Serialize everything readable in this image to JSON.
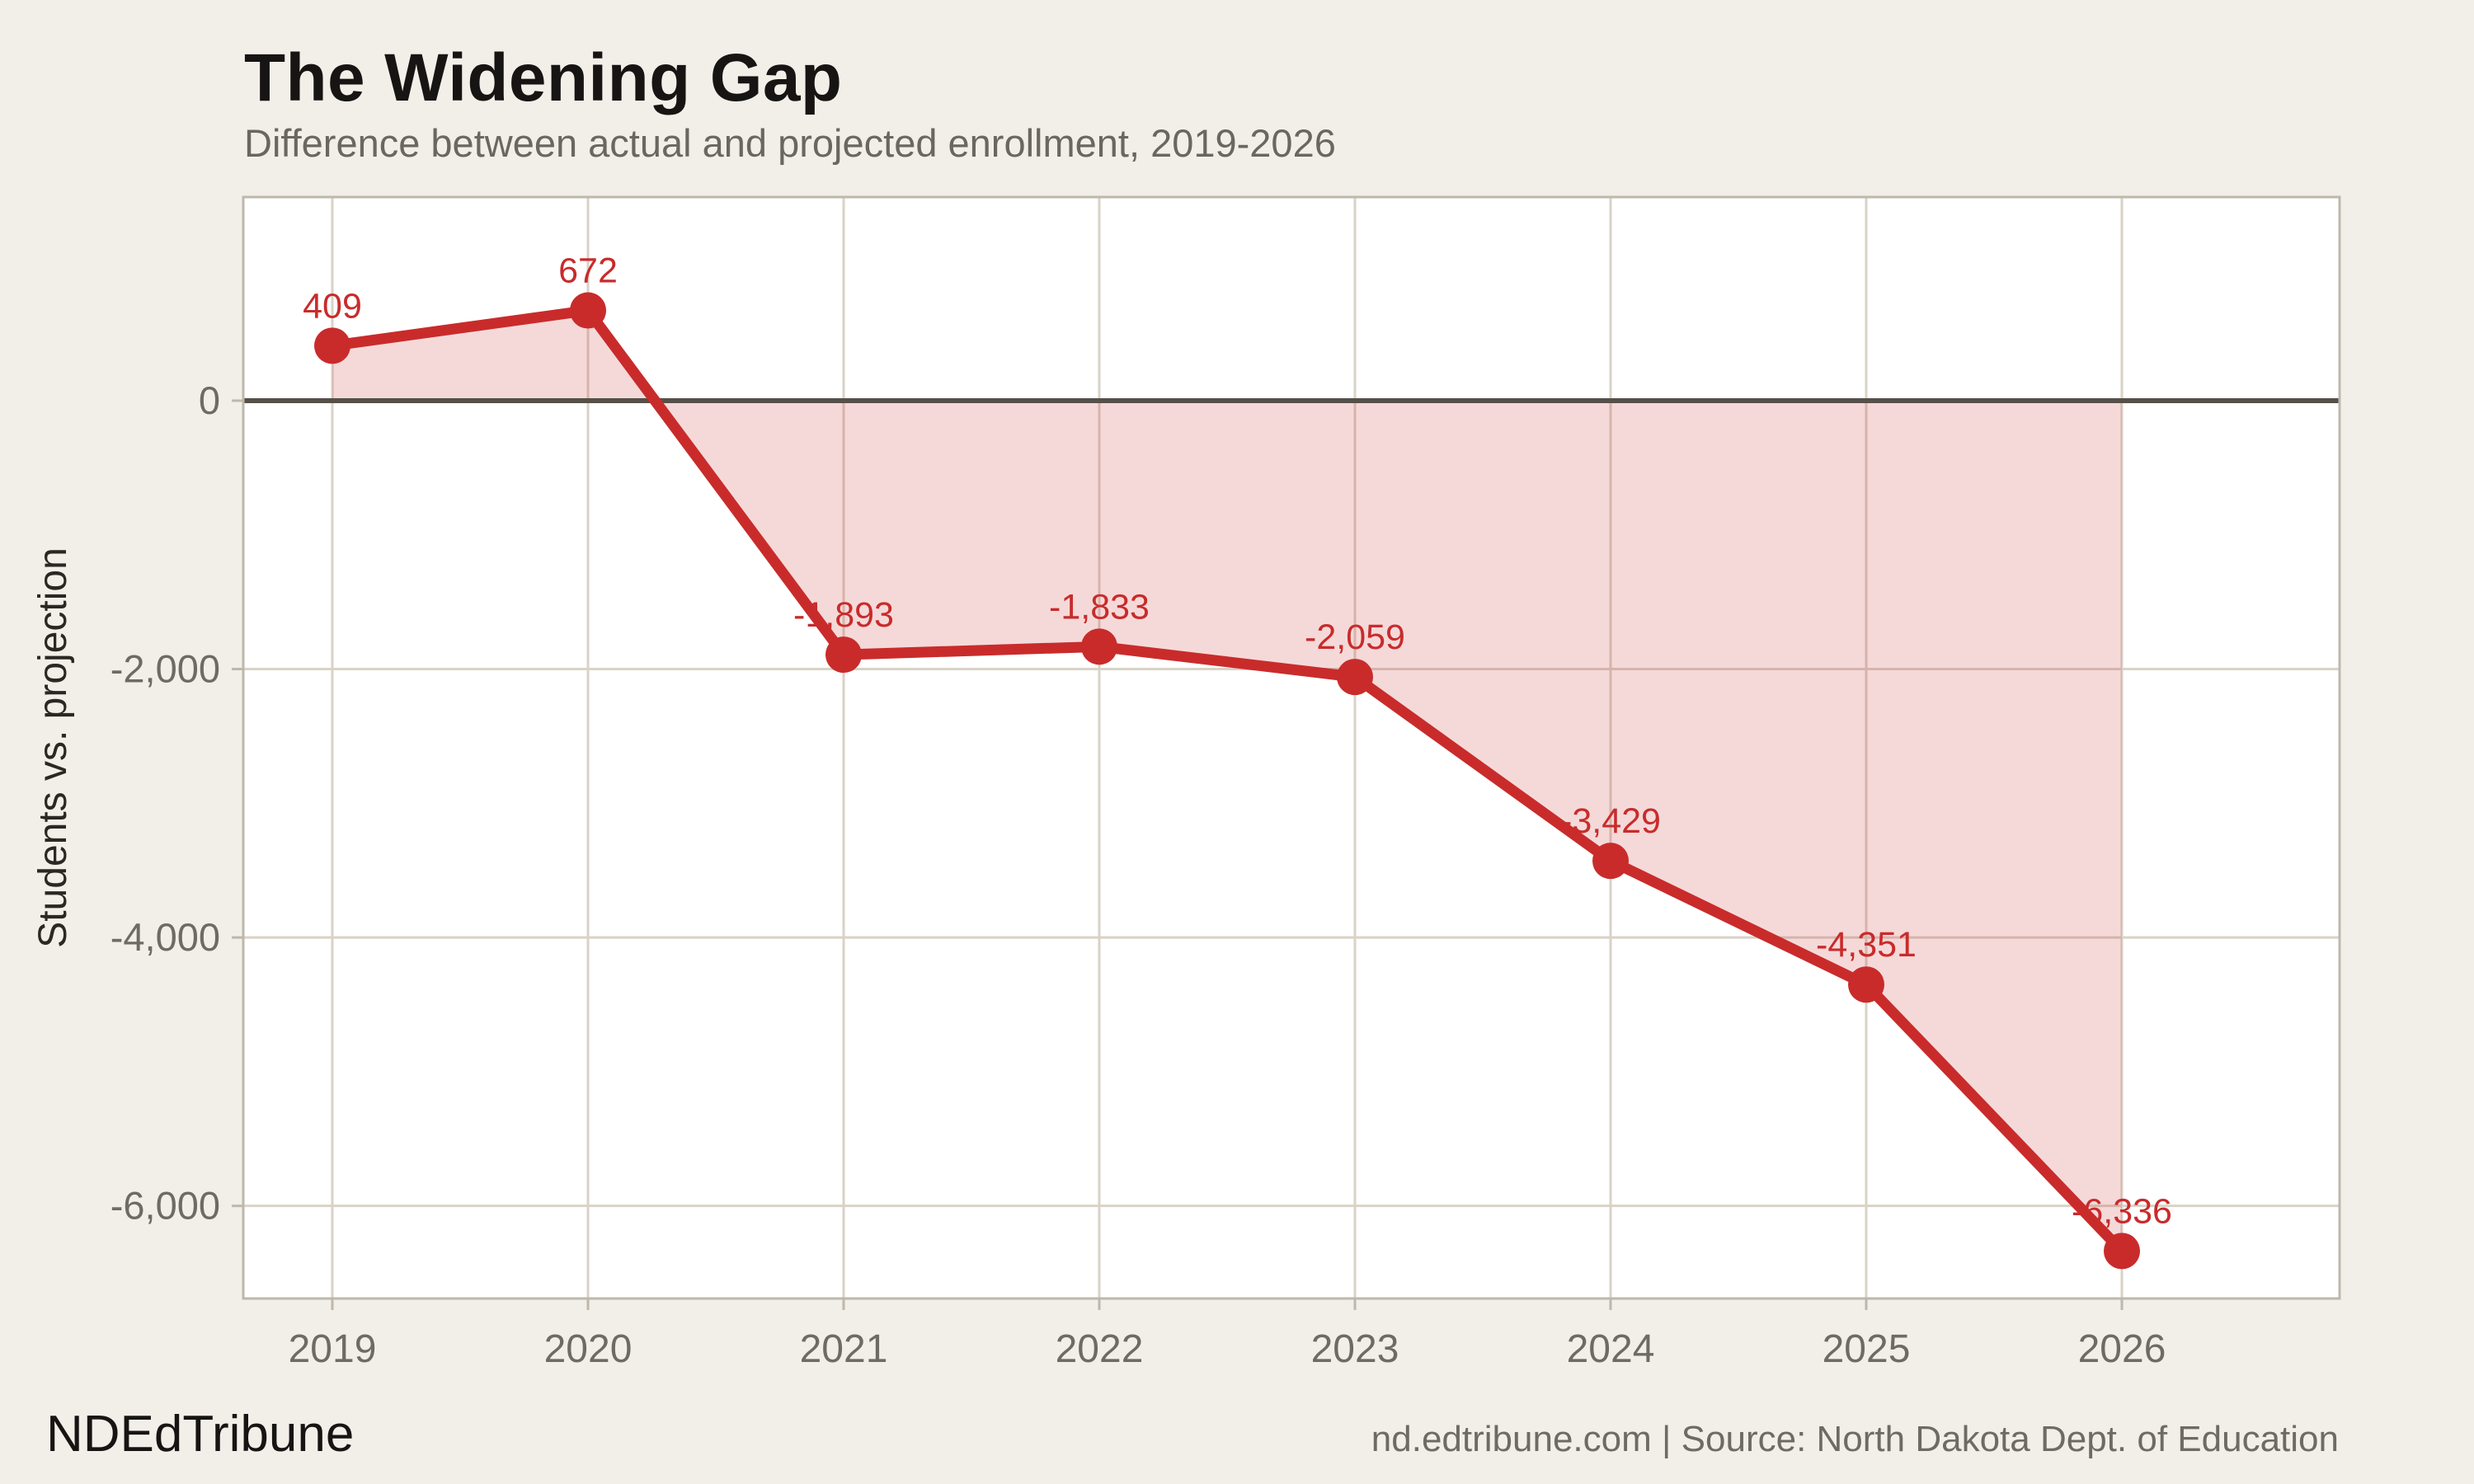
{
  "header": {
    "title": "The Widening Gap",
    "subtitle": "Difference between actual and projected enrollment, 2019-2026"
  },
  "footer": {
    "left": "NDEdTribune",
    "right": "nd.edtribune.com | Source: North Dakota Dept. of Education"
  },
  "colors": {
    "background": "#f2efe9",
    "plot_background": "#ffffff",
    "line": "#c92b2b",
    "fill": "rgba(201,43,43,0.18)",
    "gridline": "#d9d2c7",
    "plot_border": "#bfb7aa",
    "zero_line": "#565049",
    "tick_text": "#6e6a64",
    "axis_title_text": "#2b2824",
    "label_text": "#c92b2b"
  },
  "chart_data": {
    "type": "line",
    "area_to_baseline": true,
    "baseline": 0,
    "categories": [
      "2019",
      "2020",
      "2021",
      "2022",
      "2023",
      "2024",
      "2025",
      "2026"
    ],
    "values": [
      409,
      672,
      -1893,
      -1833,
      -2059,
      -3429,
      -4351,
      -6336
    ],
    "point_labels": [
      "409",
      "672",
      "-1,893",
      "-1,833",
      "-2,059",
      "-3,429",
      "-4,351",
      "-6,336"
    ],
    "title": "The Widening Gap",
    "subtitle": "Difference between actual and projected enrollment, 2019-2026",
    "xlabel": "",
    "ylabel": "Students vs. projection",
    "yticks": [
      0,
      -2000,
      -4000,
      -6000
    ],
    "ytick_labels": [
      "0",
      "-2,000",
      "-4,000",
      "-6,000"
    ],
    "ylim": [
      -6690,
      1517
    ],
    "grid": true,
    "legend": "none"
  }
}
